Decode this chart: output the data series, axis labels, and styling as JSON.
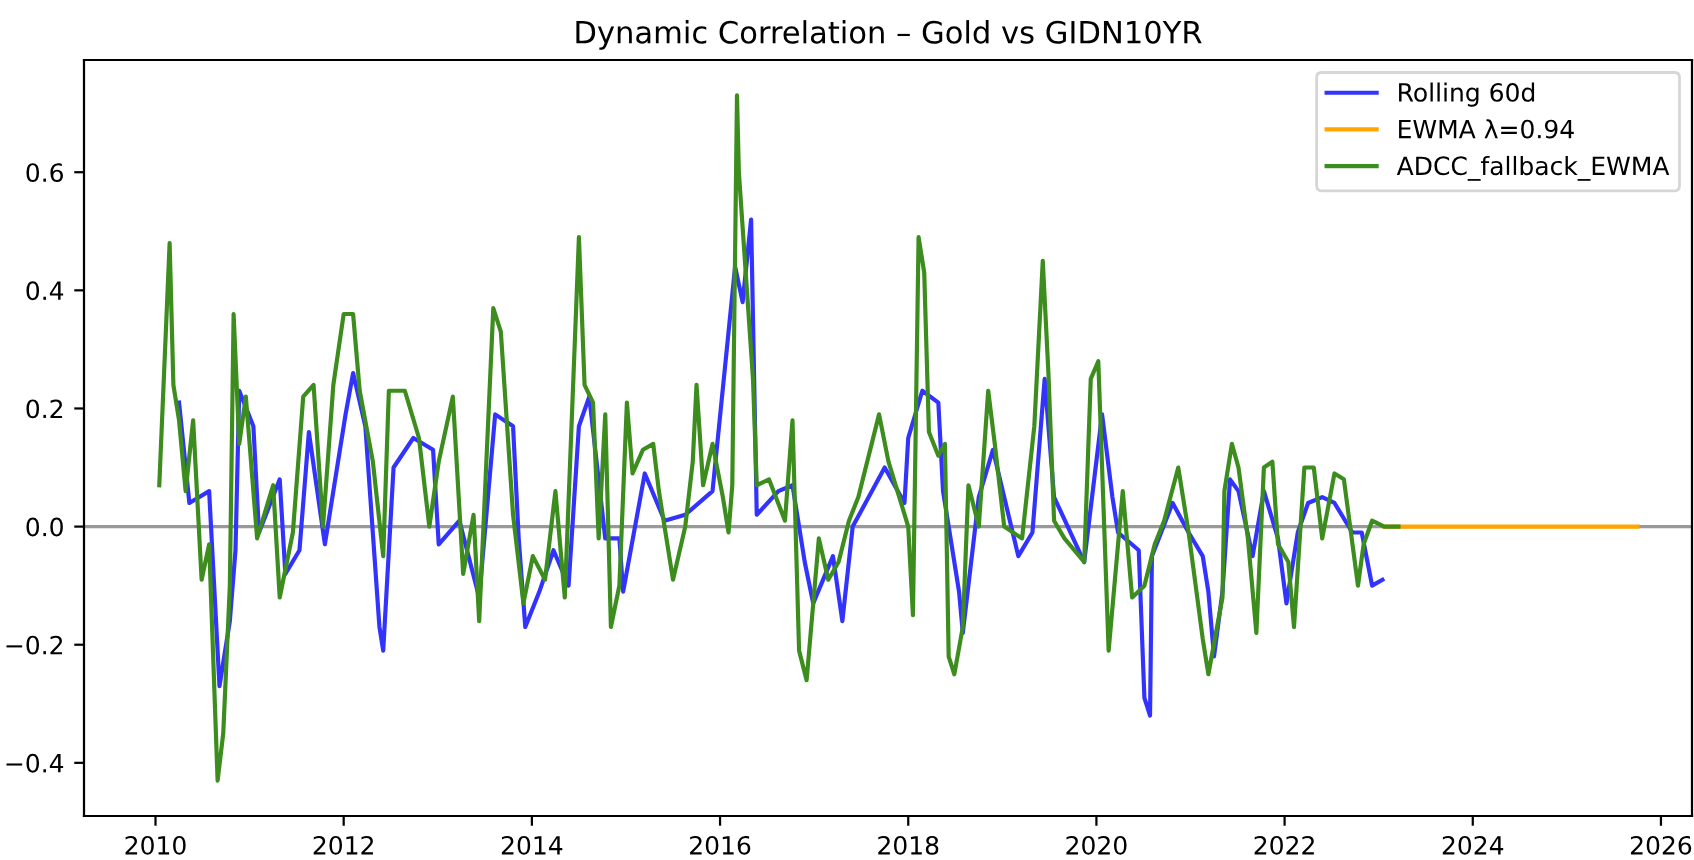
{
  "chart_data": {
    "type": "line",
    "title": "Dynamic Correlation – Gold vs GIDN10YR",
    "xlim": [
      2009.24,
      2026.33
    ],
    "xticks": [
      2010,
      2012,
      2014,
      2016,
      2018,
      2020,
      2022,
      2024,
      2026
    ],
    "ylim": [
      -0.49,
      0.79
    ],
    "yticks": [
      {
        "value": -0.4,
        "label": "−0.4"
      },
      {
        "value": -0.2,
        "label": "−0.2"
      },
      {
        "value": 0,
        "label": "0.0"
      },
      {
        "value": 0.2,
        "label": "0.2"
      },
      {
        "value": 0.4,
        "label": "0.4"
      },
      {
        "value": 0.6,
        "label": "0.6"
      }
    ],
    "grid": false,
    "legend": "top right",
    "marker": "none",
    "line_style": "solid",
    "ref_lines": [
      {
        "axis": "y",
        "value": 0,
        "color": "#999999"
      }
    ],
    "series": [
      {
        "name": "Rolling 60d",
        "color": "#3333ff",
        "x": [
          2010.25,
          2010.36,
          2010.57,
          2010.68,
          2010.79,
          2010.85,
          2010.89,
          2011.04,
          2011.1,
          2011.32,
          2011.38,
          2011.53,
          2011.63,
          2011.8,
          2012.02,
          2012.1,
          2012.23,
          2012.38,
          2012.42,
          2012.53,
          2012.74,
          2012.95,
          2013.01,
          2013.23,
          2013.44,
          2013.61,
          2013.8,
          2013.86,
          2013.93,
          2014.08,
          2014.23,
          2014.39,
          2014.5,
          2014.61,
          2014.78,
          2014.93,
          2014.97,
          2015.2,
          2015.41,
          2015.63,
          2015.92,
          2016.16,
          2016.24,
          2016.33,
          2016.39,
          2016.62,
          2016.77,
          2016.9,
          2016.99,
          2017.2,
          2017.3,
          2017.41,
          2017.75,
          2017.96,
          2018.0,
          2018.15,
          2018.32,
          2018.37,
          2018.54,
          2018.58,
          2018.75,
          2018.9,
          2019.02,
          2019.17,
          2019.32,
          2019.45,
          2019.55,
          2019.87,
          2020.06,
          2020.17,
          2020.23,
          2020.45,
          2020.51,
          2020.57,
          2020.59,
          2020.81,
          2020.98,
          2021.13,
          2021.19,
          2021.25,
          2021.34,
          2021.42,
          2021.51,
          2021.66,
          2021.78,
          2021.93,
          2022.02,
          2022.14,
          2022.25,
          2022.4,
          2022.53,
          2022.72,
          2022.82,
          2022.93,
          2023.04
        ],
        "values": [
          0.21,
          0.04,
          0.06,
          -0.27,
          -0.16,
          -0.04,
          0.23,
          0.17,
          -0.01,
          0.08,
          -0.08,
          -0.04,
          0.16,
          -0.03,
          0.19,
          0.26,
          0.17,
          -0.17,
          -0.21,
          0.1,
          0.15,
          0.13,
          -0.03,
          0.01,
          -0.12,
          0.19,
          0.17,
          -0.02,
          -0.17,
          -0.11,
          -0.04,
          -0.1,
          0.17,
          0.22,
          -0.02,
          -0.02,
          -0.11,
          0.09,
          0.01,
          0.02,
          0.06,
          0.44,
          0.38,
          0.52,
          0.02,
          0.06,
          0.07,
          -0.06,
          -0.13,
          -0.05,
          -0.16,
          0.0,
          0.1,
          0.04,
          0.15,
          0.23,
          0.21,
          0.06,
          -0.11,
          -0.18,
          0.05,
          0.13,
          0.05,
          -0.05,
          -0.01,
          0.25,
          0.05,
          -0.06,
          0.19,
          0.05,
          -0.01,
          -0.04,
          -0.29,
          -0.32,
          -0.05,
          0.04,
          -0.01,
          -0.05,
          -0.11,
          -0.22,
          -0.11,
          0.08,
          0.06,
          -0.05,
          0.06,
          -0.02,
          -0.13,
          -0.01,
          0.04,
          0.05,
          0.04,
          -0.01,
          -0.01,
          -0.1,
          -0.09
        ]
      },
      {
        "name": "EWMA λ=0.94",
        "color": "#ffa500",
        "x": [
          2023.06,
          2023.21,
          2025.75
        ],
        "values": [
          0.0,
          0.0,
          0.0
        ]
      },
      {
        "name": "ADCC_fallback_EWMA",
        "color": "#3c8d1e",
        "x": [
          2010.04,
          2010.15,
          2010.19,
          2010.25,
          2010.32,
          2010.4,
          2010.49,
          2010.57,
          2010.66,
          2010.72,
          2010.79,
          2010.83,
          2010.89,
          2010.96,
          2011.08,
          2011.25,
          2011.32,
          2011.46,
          2011.57,
          2011.68,
          2011.78,
          2011.89,
          2012.0,
          2012.1,
          2012.17,
          2012.31,
          2012.42,
          2012.48,
          2012.65,
          2012.8,
          2012.91,
          2013.01,
          2013.16,
          2013.27,
          2013.38,
          2013.44,
          2013.59,
          2013.67,
          2013.8,
          2013.91,
          2014.01,
          2014.14,
          2014.25,
          2014.35,
          2014.5,
          2014.56,
          2014.65,
          2014.71,
          2014.78,
          2014.84,
          2014.93,
          2015.01,
          2015.07,
          2015.18,
          2015.29,
          2015.35,
          2015.5,
          2015.63,
          2015.71,
          2015.75,
          2015.82,
          2015.92,
          2016.03,
          2016.09,
          2016.13,
          2016.18,
          2016.2,
          2016.35,
          2016.39,
          2016.52,
          2016.69,
          2016.77,
          2016.84,
          2016.92,
          2017.05,
          2017.15,
          2017.26,
          2017.37,
          2017.47,
          2017.69,
          2017.79,
          2018.0,
          2018.05,
          2018.11,
          2018.17,
          2018.22,
          2018.32,
          2018.39,
          2018.43,
          2018.49,
          2018.58,
          2018.64,
          2018.75,
          2018.85,
          2018.92,
          2019.02,
          2019.21,
          2019.34,
          2019.43,
          2019.49,
          2019.55,
          2019.66,
          2019.87,
          2019.94,
          2020.02,
          2020.13,
          2020.28,
          2020.38,
          2020.51,
          2020.62,
          2020.72,
          2020.87,
          2020.98,
          2021.13,
          2021.19,
          2021.34,
          2021.36,
          2021.44,
          2021.51,
          2021.61,
          2021.7,
          2021.78,
          2021.87,
          2021.93,
          2022.04,
          2022.1,
          2022.21,
          2022.31,
          2022.4,
          2022.53,
          2022.63,
          2022.78,
          2022.84,
          2022.93,
          2023.06,
          2023.21
        ],
        "values": [
          0.07,
          0.48,
          0.24,
          0.18,
          0.06,
          0.18,
          -0.09,
          -0.03,
          -0.43,
          -0.35,
          -0.1,
          0.36,
          0.14,
          0.22,
          -0.02,
          0.07,
          -0.12,
          -0.01,
          0.22,
          0.24,
          0.0,
          0.24,
          0.36,
          0.36,
          0.23,
          0.11,
          -0.05,
          0.23,
          0.23,
          0.15,
          0.0,
          0.11,
          0.22,
          -0.08,
          0.02,
          -0.16,
          0.37,
          0.33,
          0.02,
          -0.13,
          -0.05,
          -0.09,
          0.06,
          -0.12,
          0.49,
          0.24,
          0.21,
          -0.02,
          0.19,
          -0.17,
          -0.1,
          0.21,
          0.09,
          0.13,
          0.14,
          0.06,
          -0.09,
          0.0,
          0.11,
          0.24,
          0.07,
          0.14,
          0.05,
          -0.01,
          0.07,
          0.73,
          0.6,
          0.25,
          0.07,
          0.08,
          0.01,
          0.18,
          -0.21,
          -0.26,
          -0.02,
          -0.09,
          -0.06,
          0.01,
          0.05,
          0.19,
          0.11,
          0.0,
          -0.15,
          0.49,
          0.43,
          0.16,
          0.12,
          0.14,
          -0.22,
          -0.25,
          -0.17,
          0.07,
          0.0,
          0.23,
          0.14,
          0.0,
          -0.02,
          0.17,
          0.45,
          0.26,
          0.01,
          -0.02,
          -0.06,
          0.25,
          0.28,
          -0.21,
          0.06,
          -0.12,
          -0.1,
          -0.03,
          0.01,
          0.1,
          -0.01,
          -0.19,
          -0.25,
          -0.12,
          0.06,
          0.14,
          0.1,
          -0.02,
          -0.18,
          0.1,
          0.11,
          -0.03,
          -0.06,
          -0.17,
          0.1,
          0.1,
          -0.02,
          0.09,
          0.08,
          -0.1,
          -0.03,
          0.01,
          0.0,
          0.0
        ]
      }
    ]
  }
}
